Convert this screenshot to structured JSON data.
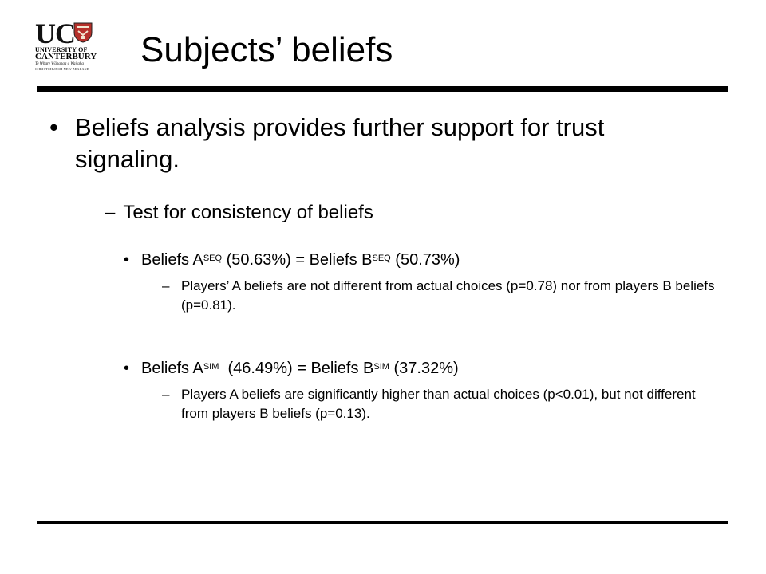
{
  "logo": {
    "abbrev": "UC",
    "line1": "UNIVERSITY OF",
    "line2": "CANTERBURY",
    "line3": "Te Whare Wānanga o Waitaha",
    "line4": "CHRISTCHURCH NEW ZEALAND",
    "crest_color": "#b5302a"
  },
  "title": "Subjects’ beliefs",
  "bullet_mark": "•",
  "dash_mark": "–",
  "main_bullet": "Beliefs analysis provides further support for trust signaling.",
  "sub_heading": "Test for consistency of beliefs",
  "seq": {
    "prefix": "Beliefs A",
    "sup_a": "SEQ",
    "mid": " (50.63%) = Beliefs B",
    "sup_b": "SEQ",
    "suffix": " (50.73%)",
    "detail": "Players’ A beliefs are not different from actual choices (p=0.78) nor from players B beliefs (p=0.81)."
  },
  "sim": {
    "prefix": "Beliefs A",
    "sup_a": "SIM",
    "mid": "  (46.49%) = Beliefs B",
    "sup_b": "SIM",
    "suffix": " (37.32%)",
    "detail": "Players A beliefs are significantly higher than actual choices (p<0.01), but not different from players B beliefs (p=0.13)."
  }
}
